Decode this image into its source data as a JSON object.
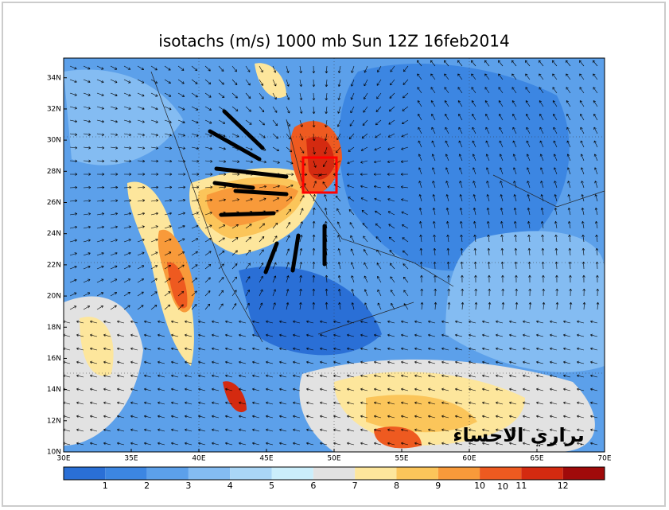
{
  "title": "isotachs (m/s) 1000 mb Sun 12Z 16feb2014",
  "lat_labels": [
    "10N",
    "12N",
    "14N",
    "16N",
    "18N",
    "20N",
    "22N",
    "24N",
    "26N",
    "28N",
    "30N",
    "32N",
    "34N"
  ],
  "lon_labels": [
    "30E",
    "35E",
    "40E",
    "45E",
    "50E",
    "55E",
    "60E",
    "65E",
    "70E"
  ],
  "colorbar": {
    "labels": [
      "1",
      "2",
      "3",
      "4",
      "5",
      "6",
      "7",
      "8",
      "9",
      "10",
      "11",
      "12"
    ],
    "colors": [
      "#2a6fd6",
      "#3c86e2",
      "#5ca0ea",
      "#84bcf2",
      "#aad6f6",
      "#cbeefb",
      "#e2e2e2",
      "#fde69c",
      "#fbc55a",
      "#f89a3a",
      "#ee5a20",
      "#d42a10",
      "#a00a0a"
    ]
  },
  "stray_label": "10",
  "watermark": "براري الاحساء"
}
